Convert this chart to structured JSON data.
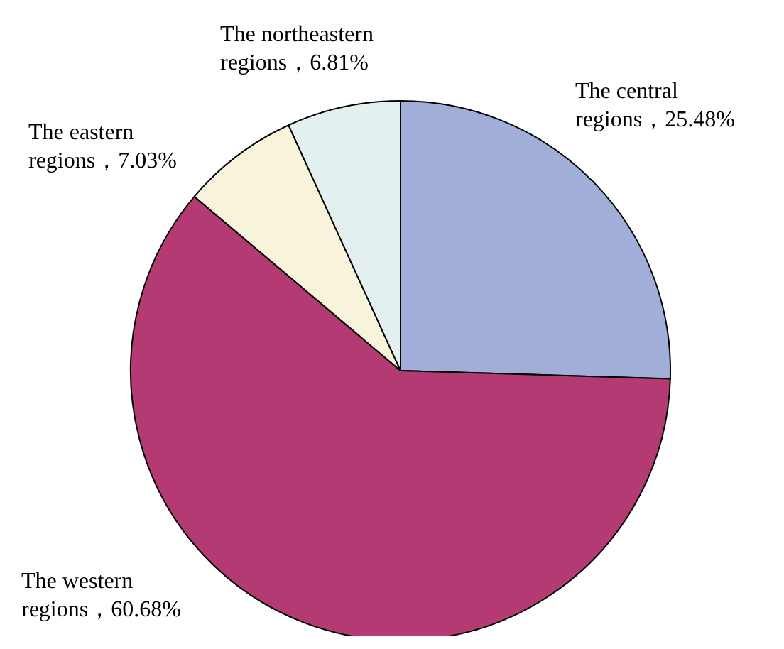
{
  "chart_data": {
    "type": "pie",
    "categories": [
      "The central regions",
      "The western regions",
      "The eastern regions",
      "The northeastern regions"
    ],
    "values": [
      25.48,
      60.68,
      7.03,
      6.81
    ],
    "value_labels": [
      "，25.48%",
      "，60.68%",
      "，7.03%",
      "，6.81%"
    ],
    "colors": [
      "#a0aed8",
      "#b33a73",
      "#f8f4dc",
      "#e4f0f0"
    ]
  }
}
